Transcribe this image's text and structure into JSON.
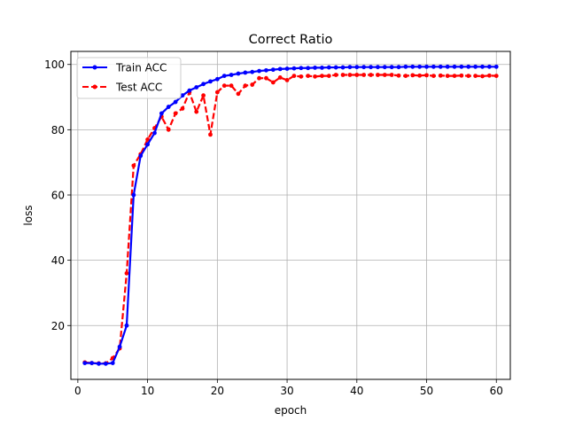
{
  "chart_data": {
    "type": "line",
    "title": "Correct Ratio",
    "xlabel": "epoch",
    "ylabel": "loss",
    "xlim": [
      -1,
      62
    ],
    "ylim": [
      3.5,
      104
    ],
    "xticks": [
      0,
      10,
      20,
      30,
      40,
      50,
      60
    ],
    "yticks": [
      20,
      40,
      60,
      80,
      100
    ],
    "grid": true,
    "legend_position": "top-left",
    "series": [
      {
        "name": "Train ACC",
        "color": "#0000ff",
        "linestyle": "solid",
        "marker": "dot",
        "x": [
          1,
          2,
          3,
          4,
          5,
          6,
          7,
          8,
          9,
          10,
          11,
          12,
          13,
          14,
          15,
          16,
          17,
          18,
          19,
          20,
          21,
          22,
          23,
          24,
          25,
          26,
          27,
          28,
          29,
          30,
          31,
          32,
          33,
          34,
          35,
          36,
          37,
          38,
          39,
          40,
          41,
          42,
          43,
          44,
          45,
          46,
          47,
          48,
          49,
          50,
          51,
          52,
          53,
          54,
          55,
          56,
          57,
          58,
          59,
          60
        ],
        "y": [
          8.5,
          8.5,
          8.3,
          8.3,
          8.5,
          13.5,
          20,
          60,
          72,
          75.5,
          79,
          85,
          87,
          88.5,
          90.5,
          92,
          93,
          94,
          94.8,
          95.5,
          96.5,
          96.8,
          97.2,
          97.5,
          97.7,
          98,
          98.2,
          98.4,
          98.6,
          98.7,
          98.8,
          98.9,
          98.9,
          99,
          99,
          99.1,
          99.1,
          99.1,
          99.2,
          99.2,
          99.2,
          99.2,
          99.2,
          99.2,
          99.2,
          99.2,
          99.3,
          99.3,
          99.3,
          99.3,
          99.3,
          99.3,
          99.3,
          99.3,
          99.3,
          99.3,
          99.3,
          99.3,
          99.3,
          99.3
        ]
      },
      {
        "name": "Test ACC",
        "color": "#ff0000",
        "linestyle": "dashed",
        "marker": "dot",
        "x": [
          1,
          2,
          3,
          4,
          5,
          6,
          7,
          8,
          9,
          10,
          11,
          12,
          13,
          14,
          15,
          16,
          17,
          18,
          19,
          20,
          21,
          22,
          23,
          24,
          25,
          26,
          27,
          28,
          29,
          30,
          31,
          32,
          33,
          34,
          35,
          36,
          37,
          38,
          39,
          40,
          41,
          42,
          43,
          44,
          45,
          46,
          47,
          48,
          49,
          50,
          51,
          52,
          53,
          54,
          55,
          56,
          57,
          58,
          59,
          60
        ],
        "y": [
          8.7,
          8.5,
          8.4,
          8.4,
          10,
          13,
          36,
          69,
          72.5,
          77,
          80.5,
          84,
          80,
          85,
          86.5,
          91.5,
          85.5,
          90.5,
          78.5,
          91.5,
          93.5,
          93.5,
          91,
          93.5,
          93.8,
          95.8,
          95.8,
          94.5,
          96,
          95.2,
          96.5,
          96.3,
          96.5,
          96.3,
          96.5,
          96.5,
          96.8,
          96.8,
          96.8,
          96.8,
          96.8,
          96.8,
          96.8,
          96.8,
          96.8,
          96.6,
          96.5,
          96.7,
          96.6,
          96.7,
          96.5,
          96.6,
          96.5,
          96.5,
          96.6,
          96.5,
          96.5,
          96.4,
          96.6,
          96.5
        ]
      }
    ]
  }
}
